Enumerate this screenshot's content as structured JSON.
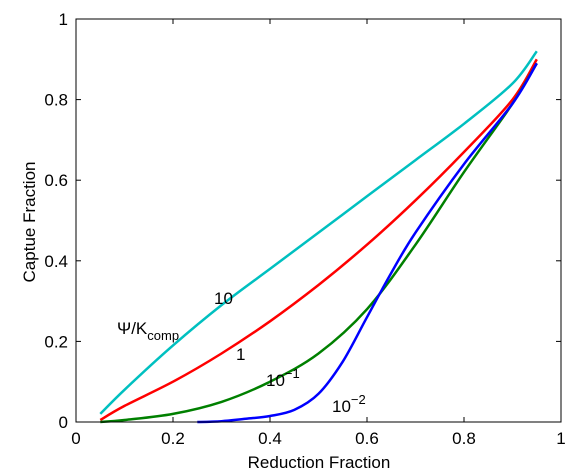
{
  "chart_data": {
    "type": "line",
    "title": "",
    "xlabel": "Reduction Fraction",
    "ylabel": "Captue Fraction",
    "xlim": [
      0,
      1
    ],
    "ylim": [
      0,
      1
    ],
    "xticks": [
      0,
      0.2,
      0.4,
      0.6,
      0.8,
      1
    ],
    "yticks": [
      0,
      0.2,
      0.4,
      0.6,
      0.8,
      1
    ],
    "xtick_labels": [
      "0",
      "0.2",
      "0.4",
      "0.6",
      "0.8",
      "1"
    ],
    "ytick_labels": [
      "0",
      "0.2",
      "0.4",
      "0.6",
      "0.8",
      "1"
    ],
    "grid": false,
    "legend": "none",
    "annotation_parameter": {
      "base": "Ψ/K",
      "subscript": "comp"
    },
    "series": [
      {
        "label": "10",
        "color": "#00c0c0",
        "x": [
          0.05,
          0.1,
          0.2,
          0.3,
          0.4,
          0.5,
          0.6,
          0.7,
          0.8,
          0.9,
          0.95
        ],
        "y": [
          0.02,
          0.08,
          0.19,
          0.29,
          0.38,
          0.47,
          0.56,
          0.65,
          0.74,
          0.84,
          0.92
        ]
      },
      {
        "label": "1",
        "color": "#ff0000",
        "x": [
          0.05,
          0.1,
          0.2,
          0.3,
          0.4,
          0.5,
          0.6,
          0.7,
          0.8,
          0.9,
          0.95
        ],
        "y": [
          0.005,
          0.04,
          0.1,
          0.17,
          0.25,
          0.34,
          0.44,
          0.55,
          0.67,
          0.8,
          0.9
        ]
      },
      {
        "label": "10",
        "label_exponent": "−1",
        "color": "#008000",
        "x": [
          0.05,
          0.1,
          0.2,
          0.3,
          0.4,
          0.5,
          0.6,
          0.7,
          0.8,
          0.9,
          0.95
        ],
        "y": [
          0.0,
          0.005,
          0.02,
          0.05,
          0.1,
          0.17,
          0.28,
          0.44,
          0.62,
          0.79,
          0.89
        ]
      },
      {
        "label": "10",
        "label_exponent": "−2",
        "color": "#0000ff",
        "x": [
          0.25,
          0.3,
          0.35,
          0.4,
          0.45,
          0.5,
          0.55,
          0.6,
          0.65,
          0.7,
          0.8,
          0.9,
          0.95
        ],
        "y": [
          0.0,
          0.002,
          0.008,
          0.015,
          0.03,
          0.07,
          0.15,
          0.26,
          0.37,
          0.47,
          0.64,
          0.79,
          0.89
        ]
      }
    ]
  }
}
